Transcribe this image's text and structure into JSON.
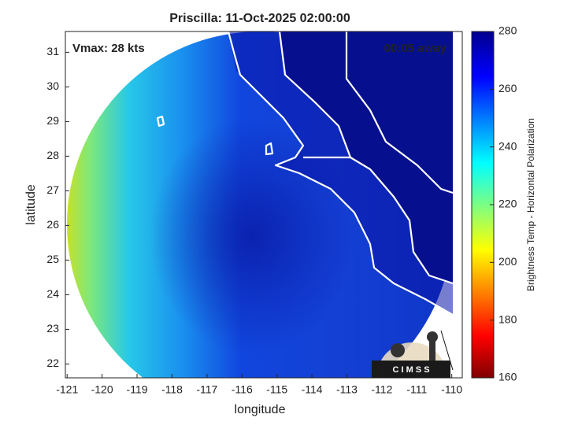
{
  "chart_data": {
    "type": "map",
    "title": "Priscilla: 11-Oct-2025 02:00:00",
    "annotations": [
      "Vmax: 28 kts",
      "00:05 away"
    ],
    "xlabel": "longitude",
    "ylabel": "latitude",
    "xlim": [
      -121.05,
      -109.7
    ],
    "ylim": [
      21.6,
      31.6
    ],
    "xticks": [
      -121,
      -120,
      -119,
      -118,
      -117,
      -116,
      -115,
      -114,
      -113,
      -112,
      -111,
      -110
    ],
    "yticks": [
      22,
      23,
      24,
      25,
      26,
      27,
      28,
      29,
      30,
      31
    ],
    "colorbar": {
      "label": "Brightness Temp - Horizontal Polarization",
      "lim": [
        160,
        280
      ],
      "ticks": [
        160,
        180,
        200,
        220,
        240,
        260,
        280
      ]
    },
    "logo": "C I M S S"
  }
}
